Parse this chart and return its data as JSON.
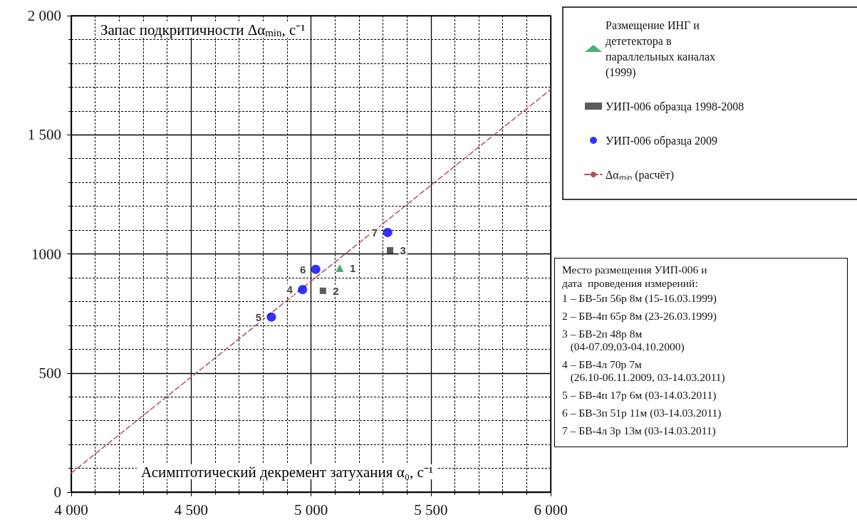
{
  "chart_data": {
    "type": "scatter",
    "xlabel": "Асимптотический декремент затухания α₀, с⁻¹",
    "ylabel": "Запас подкритичности Δα$_{min}$, с⁻¹",
    "xlim": [
      4000,
      6000
    ],
    "xticks": [
      {
        "value": 4000,
        "label": "4 000"
      },
      {
        "value": 4500,
        "label": "4 500"
      },
      {
        "value": 5000,
        "label": "5 000"
      },
      {
        "value": 5500,
        "label": "5 500"
      },
      {
        "value": 6000,
        "label": "6 000"
      }
    ],
    "ylim": [
      0,
      2000
    ],
    "yticks": [
      0,
      500,
      1000,
      {
        "value": 1500,
        "label": "1 500"
      },
      {
        "value": 2000,
        "label": "2 000"
      }
    ],
    "grid": true,
    "legend": "top right",
    "series": [
      {
        "name": "Размещение ИНГ и дететектора в параллельных каналах (1999)",
        "color": "#1f9a5a",
        "marker": "triangle",
        "x": [
          5120
        ],
        "values": [
          940
        ]
      },
      {
        "name": "УИП-006 образца 1998-2008",
        "color": "#333333",
        "marker": "square",
        "x": [
          5050,
          5330
        ],
        "values": [
          845,
          1015
        ]
      },
      {
        "name": "УИП-006 образца 2009",
        "color": "#0000ff",
        "marker": "circle",
        "x": [
          4965,
          4835,
          5020,
          5320
        ],
        "values": [
          850,
          735,
          935,
          1090
        ]
      },
      {
        "name": "Δαₘᵢₙ (расчёт)",
        "type": "line",
        "color": "#b0505f",
        "marker": "none",
        "line_style": "dashed",
        "x": [
          4000,
          6000
        ],
        "values": [
          80,
          1690
        ]
      }
    ],
    "annotations": [
      {
        "text": "1",
        "x": 5120,
        "y": 940
      },
      {
        "text": "2",
        "x": 5050,
        "y": 845
      },
      {
        "text": "3",
        "x": 5330,
        "y": 1015
      },
      {
        "text": "4",
        "x": 4965,
        "y": 850
      },
      {
        "text": "5",
        "x": 4835,
        "y": 735
      },
      {
        "text": "6",
        "x": 5020,
        "y": 935
      },
      {
        "text": "7",
        "x": 5320,
        "y": 1090
      },
      "Место размещения УИП-006 и",
      "дата  проведения измерений:",
      "1 – БВ-5п 56р 8м (15-16.03.1999)",
      "2 – БВ-4п 65р 8м (23-26.03.1999)",
      "3 – БВ-2п 48р 8м\n(04-07.09,03-04.10.2000)",
      "4 – БВ-4л 70р 7м\n(26.10-06.11.2009, 03-14.03.2011)",
      "5 – БВ-4п 17р 6м (03-14.03.2011)",
      "6 – БВ-3п 51р 11м (03-14.03.2011)",
      "7 – БВ-4л 3р 13м (03-14.03.2011)"
    ]
  }
}
